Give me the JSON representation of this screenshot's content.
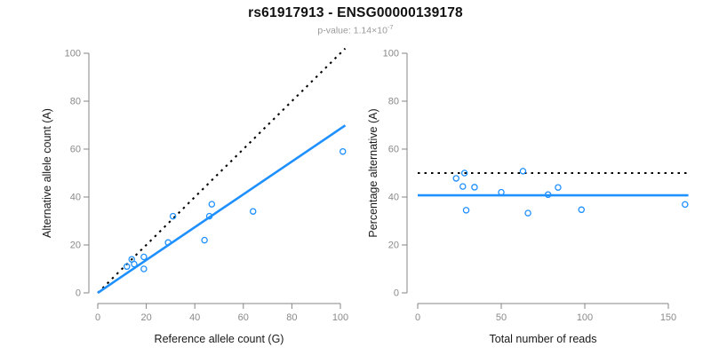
{
  "header": {
    "title": "rs61917913 - ENSG00000139178",
    "pvalue_text": "p-value: 1.14×10",
    "pvalue_exponent": "-7"
  },
  "colors": {
    "fit_line_blue": "#1E90FF",
    "reference_line_black": "#000000",
    "axis_gray": "#858585",
    "tick_label_gray": "#8a8a8a",
    "subtitle_gray": "#9a9a9a"
  },
  "chart_data": [
    {
      "type": "scatter",
      "name": "allele-counts-scatter",
      "xlabel": "Reference allele count (G)",
      "ylabel": "Alternative allele count (A)",
      "xlim": [
        0,
        102
      ],
      "ylim": [
        0,
        102
      ],
      "xticks": [
        0,
        20,
        40,
        60,
        80,
        100
      ],
      "yticks": [
        0,
        20,
        40,
        60,
        80,
        100
      ],
      "grid": false,
      "legend": null,
      "points": [
        [
          12,
          11
        ],
        [
          14,
          14
        ],
        [
          15,
          12
        ],
        [
          19,
          15
        ],
        [
          19,
          10
        ],
        [
          29,
          21
        ],
        [
          31,
          32
        ],
        [
          44,
          22
        ],
        [
          46,
          32
        ],
        [
          47,
          37
        ],
        [
          64,
          34
        ],
        [
          101,
          59
        ]
      ],
      "lines": [
        {
          "name": "identity",
          "style": "dotted",
          "color": "#000000",
          "from": [
            0,
            0
          ],
          "to": [
            102,
            102
          ]
        },
        {
          "name": "fit",
          "style": "solid",
          "color": "#1E90FF",
          "from": [
            0,
            0
          ],
          "to": [
            102,
            69.9
          ]
        }
      ]
    },
    {
      "type": "scatter",
      "name": "percentage-alternative-scatter",
      "xlabel": "Total number of reads",
      "ylabel": "Percentage alternative (A)",
      "xlim": [
        0,
        162
      ],
      "ylim": [
        0,
        102
      ],
      "xticks": [
        0,
        50,
        100,
        150
      ],
      "yticks": [
        0,
        20,
        40,
        60,
        80,
        100
      ],
      "grid": false,
      "legend": null,
      "points": [
        [
          23,
          47.8
        ],
        [
          27,
          44.4
        ],
        [
          28,
          50
        ],
        [
          29,
          34.5
        ],
        [
          34,
          44.1
        ],
        [
          50,
          42
        ],
        [
          63,
          50.8
        ],
        [
          66,
          33.3
        ],
        [
          78,
          41
        ],
        [
          84,
          44
        ],
        [
          98,
          34.7
        ],
        [
          160,
          36.9
        ]
      ],
      "lines": [
        {
          "name": "null-50pct",
          "style": "dotted",
          "color": "#000000",
          "y": 50
        },
        {
          "name": "fit-mean",
          "style": "solid",
          "color": "#1E90FF",
          "y": 40.7
        }
      ]
    }
  ]
}
